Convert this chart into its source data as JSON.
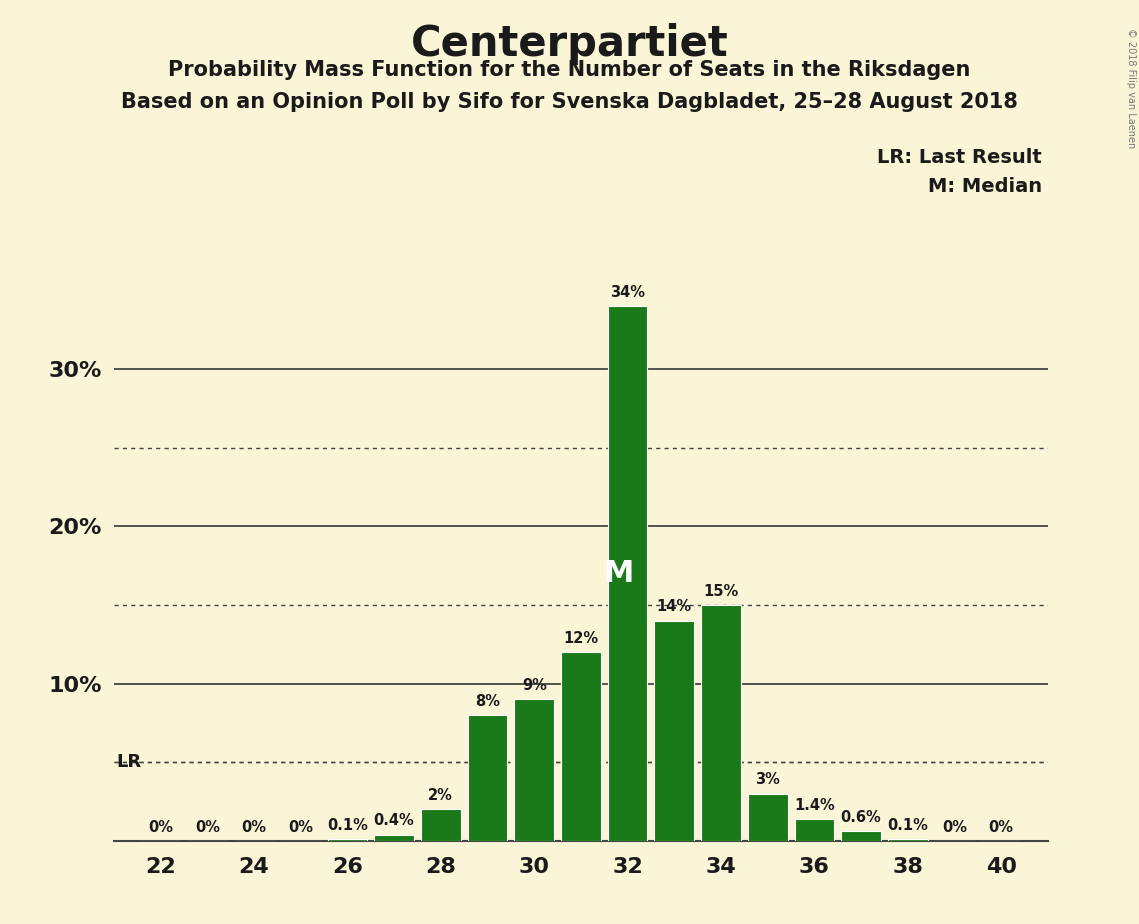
{
  "title": "Centerpartiet",
  "subtitle1": "Probability Mass Function for the Number of Seats in the Riksdagen",
  "subtitle2": "Based on an Opinion Poll by Sifo for Svenska Dagbladet, 25–28 August 2018",
  "copyright": "© 2018 Filip van Laenen",
  "legend_lr": "LR: Last Result",
  "legend_m": "M: Median",
  "seats": [
    22,
    23,
    24,
    25,
    26,
    27,
    28,
    29,
    30,
    31,
    32,
    33,
    34,
    35,
    36,
    37,
    38,
    39,
    40
  ],
  "probabilities": [
    0.0,
    0.0,
    0.0,
    0.0,
    0.1,
    0.4,
    2.0,
    8.0,
    9.0,
    12.0,
    34.0,
    14.0,
    15.0,
    3.0,
    1.4,
    0.6,
    0.1,
    0.0,
    0.0
  ],
  "bar_color": "#1a7a1a",
  "background_color": "#faf5d7",
  "lr_seat": 22,
  "median_seat": 32,
  "dotted_lines": [
    5.0,
    15.0,
    25.0
  ],
  "solid_lines": [
    10.0,
    20.0,
    30.0
  ],
  "lr_line_y": 5.0,
  "xlim": [
    21.0,
    41.0
  ],
  "ylim": [
    0.0,
    37.0
  ]
}
